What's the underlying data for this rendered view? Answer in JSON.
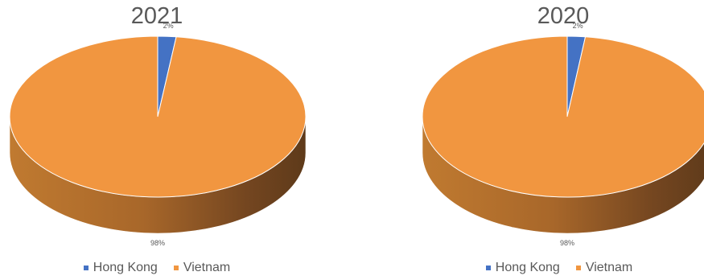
{
  "chart_data": [
    {
      "type": "pie",
      "title": "2021",
      "categories": [
        "Hong Kong",
        "Vietnam"
      ],
      "values": [
        2,
        98
      ],
      "data_labels": [
        "2%",
        "98%"
      ],
      "colors": [
        "#4472c4",
        "#f19640"
      ],
      "legend": "bottom",
      "style": "3d"
    },
    {
      "type": "pie",
      "title": "2020",
      "categories": [
        "Hong Kong",
        "Vietnam"
      ],
      "values": [
        2,
        98
      ],
      "data_labels": [
        "2%",
        "98%"
      ],
      "colors": [
        "#4472c4",
        "#f19640"
      ],
      "legend": "bottom",
      "style": "3d"
    }
  ]
}
